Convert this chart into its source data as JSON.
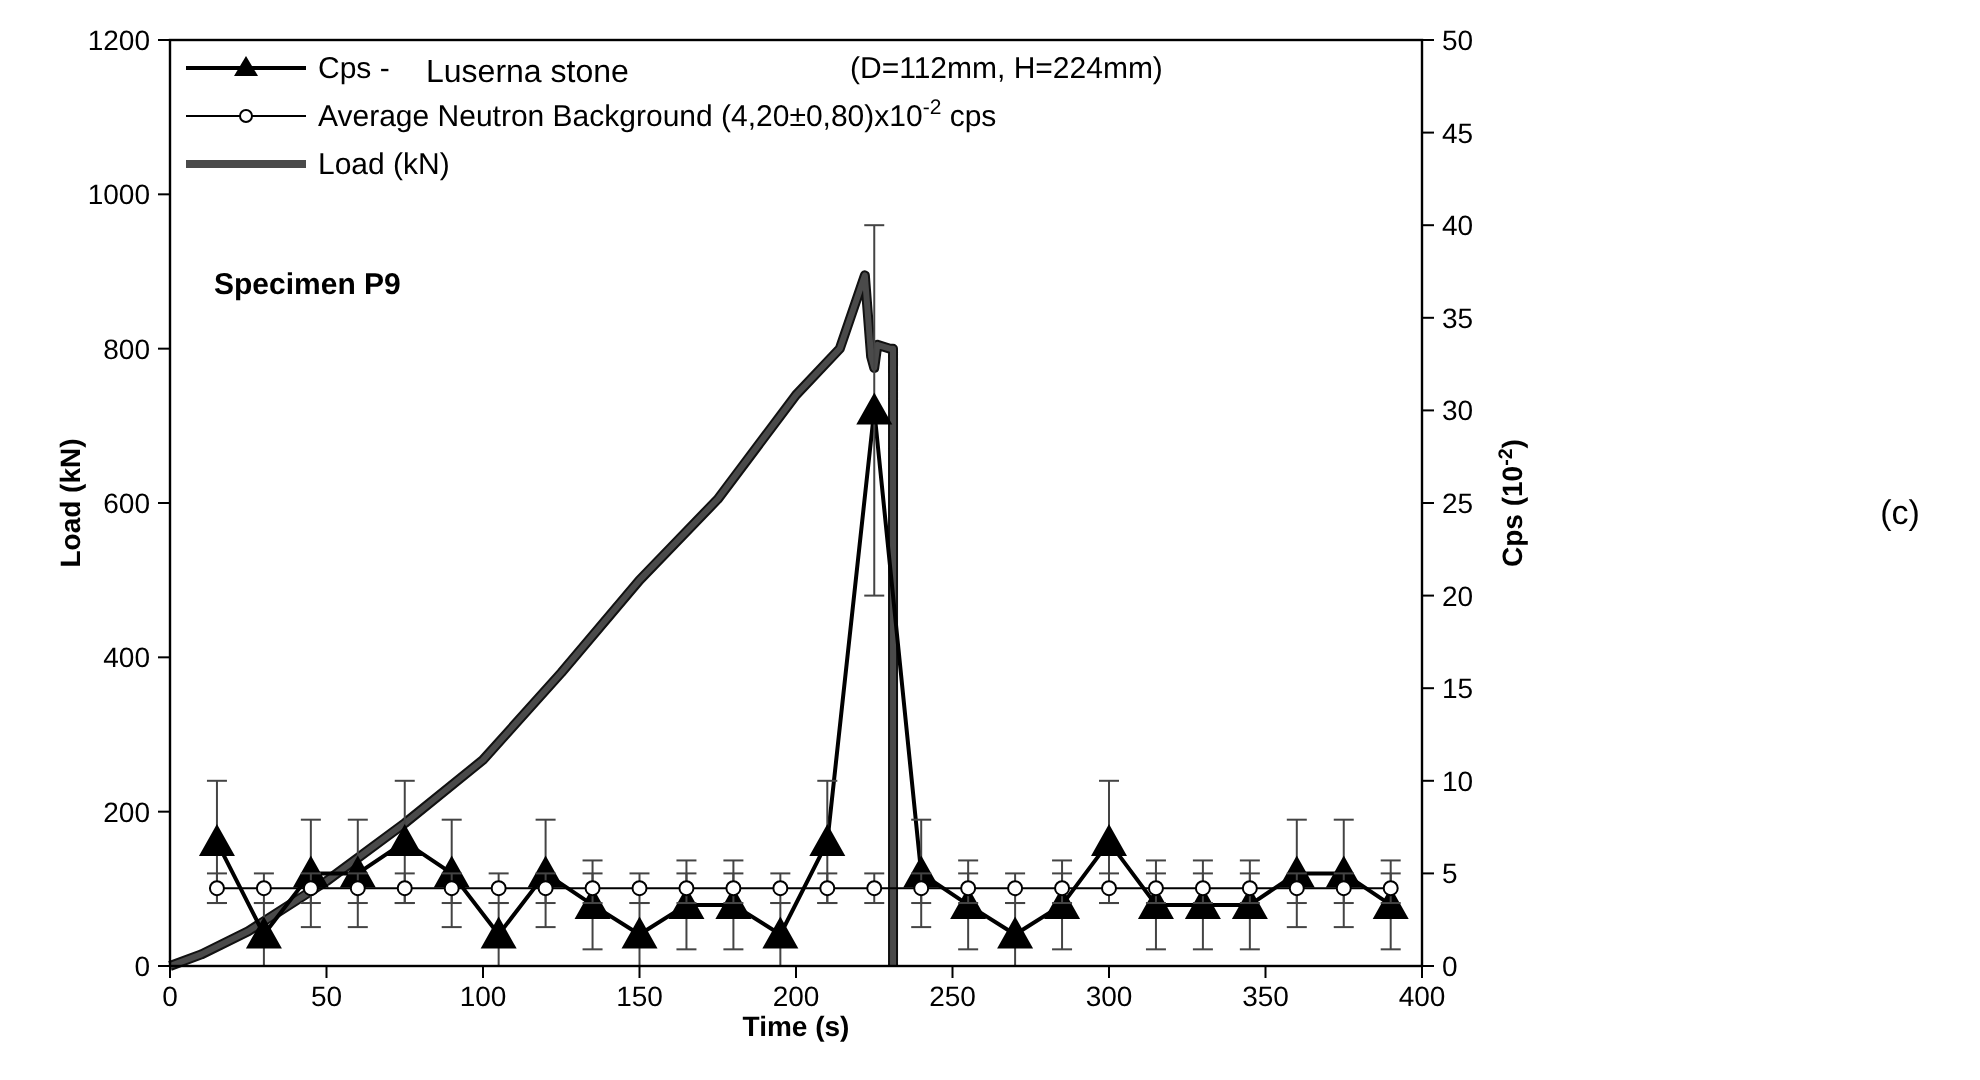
{
  "chart_data": {
    "type": "line",
    "xlabel": "Time (s)",
    "ylabel": "Load (kN)",
    "y2label": "Cps (10$^{-2}$)",
    "xlim": [
      0,
      400
    ],
    "xticks": [
      0,
      50,
      100,
      150,
      200,
      250,
      300,
      350,
      400
    ],
    "ylim": [
      0,
      1200
    ],
    "yticks": [
      0,
      200,
      400,
      600,
      800,
      1000,
      1200
    ],
    "y2lim": [
      0,
      50
    ],
    "y2ticks": [
      0,
      5,
      10,
      15,
      20,
      25,
      30,
      35,
      40,
      45,
      50
    ],
    "legend": "top left",
    "grid": false,
    "annotations": [
      "Luserna stone",
      "(D=112mm, H=224mm)",
      "Specimen P9",
      "(c)"
    ],
    "series": [
      {
        "name": "Cps -",
        "axis": "y2",
        "color": "#000000",
        "marker": "triangle",
        "line_style": "solid",
        "x": [
          15,
          30,
          45,
          60,
          75,
          90,
          105,
          120,
          135,
          150,
          165,
          180,
          195,
          210,
          225,
          240,
          255,
          270,
          285,
          300,
          315,
          330,
          345,
          360,
          375,
          390
        ],
        "values": [
          6.7,
          1.7,
          5,
          5,
          6.7,
          5,
          1.7,
          5,
          3.3,
          1.7,
          3.3,
          3.3,
          1.7,
          6.7,
          30,
          5,
          3.3,
          1.7,
          3.3,
          6.7,
          3.3,
          3.3,
          3.3,
          5,
          5,
          3.3
        ],
        "errors": [
          3.3,
          1.7,
          2.9,
          2.9,
          3.3,
          2.9,
          1.7,
          2.9,
          2.4,
          1.7,
          2.4,
          2.4,
          1.7,
          3.3,
          10,
          2.9,
          2.4,
          1.7,
          2.4,
          3.3,
          2.4,
          2.4,
          2.4,
          2.9,
          2.9,
          2.4
        ]
      },
      {
        "name": "Average Neutron Background (4,20±0,80)x10$^{-2}$ cps",
        "axis": "y2",
        "color": "#000000",
        "marker": "circle",
        "line_style": "solid",
        "x": [
          15,
          30,
          45,
          60,
          75,
          90,
          105,
          120,
          135,
          150,
          165,
          180,
          195,
          210,
          225,
          240,
          255,
          270,
          285,
          300,
          315,
          330,
          345,
          360,
          375,
          390
        ],
        "values": [
          4.2,
          4.2,
          4.2,
          4.2,
          4.2,
          4.2,
          4.2,
          4.2,
          4.2,
          4.2,
          4.2,
          4.2,
          4.2,
          4.2,
          4.2,
          4.2,
          4.2,
          4.2,
          4.2,
          4.2,
          4.2,
          4.2,
          4.2,
          4.2,
          4.2,
          4.2
        ],
        "errors": [
          0.8,
          0.8,
          0.8,
          0.8,
          0.8,
          0.8,
          0.8,
          0.8,
          0.8,
          0.8,
          0.8,
          0.8,
          0.8,
          0.8,
          0.8,
          0.8,
          0.8,
          0.8,
          0.8,
          0.8,
          0.8,
          0.8,
          0.8,
          0.8,
          0.8,
          0.8
        ]
      },
      {
        "name": "Load (kN)",
        "color": "#4a4a4a",
        "marker": "none",
        "line_style": "solid",
        "x": [
          0,
          10,
          25,
          50,
          75,
          100,
          125,
          150,
          175,
          200,
          214,
          222,
          224,
          225,
          226,
          230,
          231,
          231
        ],
        "values": [
          0,
          15,
          45,
          110,
          185,
          267,
          380,
          500,
          605,
          740,
          800,
          895,
          790,
          775,
          805,
          800,
          800,
          0
        ]
      }
    ]
  }
}
